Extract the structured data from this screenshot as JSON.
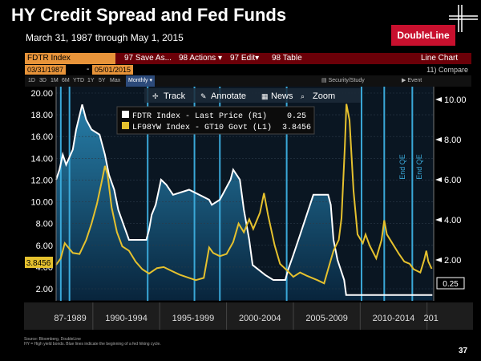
{
  "slide": {
    "title": "HY Credit Spread and Fed Funds",
    "subtitle": "March 31, 1987 through May 1, 2015",
    "logo": "DoubleLine",
    "page_number": "37",
    "footnote_source": "Source: Bloomberg, DoubleLine",
    "footnote_note": "HY = High yield bonds. Blue lines indicate the beginning of a fed hiking cycle."
  },
  "terminal": {
    "ticker": "FDTR Index",
    "save_as": "97 Save As...",
    "actions": "98 Actions",
    "edit": "97 Edit",
    "table": "98 Table",
    "view_type": "Line Chart",
    "compare": "Compare",
    "start_date": "03/31/1987",
    "end_date": "05/01/2015",
    "periods": [
      "1D",
      "3D",
      "1M",
      "6M",
      "YTD",
      "1Y",
      "5Y",
      "Max"
    ],
    "active_period": "Monthly",
    "security_study": "Security/Study",
    "event": "Event",
    "tools": [
      "Track",
      "Annotate",
      "News",
      "Zoom"
    ]
  },
  "colors": {
    "fed_funds": "#ffffff",
    "hy_spread": "#e5c12e",
    "hike_lines": "#3aa8d8",
    "accent": "#c8102e",
    "toolbar": "#6b0008",
    "ticker_bg": "#e8943a"
  },
  "chart_data": {
    "type": "line",
    "x_categories": [
      "87-1989",
      "1990-1994",
      "1995-1999",
      "2000-2004",
      "2005-2009",
      "2010-2014",
      "201"
    ],
    "left_axis": {
      "ticks": [
        20.0,
        18.0,
        16.0,
        14.0,
        12.0,
        10.0,
        8.0,
        6.0,
        4.0,
        2.0
      ],
      "range": [
        2,
        20
      ]
    },
    "right_axis": {
      "ticks": [
        10.0,
        8.0,
        6.0,
        4.0,
        2.0
      ],
      "range": [
        0,
        10
      ]
    },
    "legend": [
      {
        "name": "FDTR Index - Last Price (R1)",
        "value": "0.25"
      },
      {
        "name": "LF98YW Index - GT10 Govt (L1)",
        "value": "3.8456"
      }
    ],
    "last_values": {
      "hy": "3.8456",
      "ff": "0.25"
    },
    "annotations": [
      "End QE",
      "End QE"
    ],
    "hike_years": [
      1987.6,
      1988.25,
      1994.1,
      1997.6,
      1999.5,
      2004.5,
      2010.1,
      2011.8,
      2013.9
    ],
    "annotation_years": [
      2013.7,
      2014.95
    ],
    "series": [
      {
        "name": "FDTR Index",
        "axis": "right",
        "points": [
          [
            1987.25,
            6.0
          ],
          [
            1987.5,
            6.5
          ],
          [
            1987.75,
            7.25
          ],
          [
            1988.0,
            6.75
          ],
          [
            1988.5,
            7.5
          ],
          [
            1988.75,
            8.5
          ],
          [
            1989.2,
            9.75
          ],
          [
            1989.5,
            9.0
          ],
          [
            1989.9,
            8.5
          ],
          [
            1990.5,
            8.25
          ],
          [
            1990.9,
            7.25
          ],
          [
            1991.2,
            6.25
          ],
          [
            1991.6,
            5.5
          ],
          [
            1991.9,
            4.5
          ],
          [
            1992.3,
            3.75
          ],
          [
            1992.7,
            3.0
          ],
          [
            1993.5,
            3.0
          ],
          [
            1994.0,
            3.0
          ],
          [
            1994.2,
            3.5
          ],
          [
            1994.4,
            4.25
          ],
          [
            1994.7,
            4.75
          ],
          [
            1995.1,
            6.0
          ],
          [
            1995.5,
            5.75
          ],
          [
            1996.0,
            5.25
          ],
          [
            1997.2,
            5.5
          ],
          [
            1998.7,
            5.0
          ],
          [
            1998.9,
            4.75
          ],
          [
            1999.5,
            5.0
          ],
          [
            1999.9,
            5.5
          ],
          [
            2000.3,
            6.0
          ],
          [
            2000.5,
            6.5
          ],
          [
            2001.0,
            6.0
          ],
          [
            2001.3,
            4.5
          ],
          [
            2001.7,
            3.0
          ],
          [
            2001.95,
            1.75
          ],
          [
            2002.9,
            1.25
          ],
          [
            2003.5,
            1.0
          ],
          [
            2004.4,
            1.0
          ],
          [
            2004.6,
            1.5
          ],
          [
            2005.0,
            2.25
          ],
          [
            2005.5,
            3.25
          ],
          [
            2006.0,
            4.25
          ],
          [
            2006.5,
            5.25
          ],
          [
            2007.6,
            5.25
          ],
          [
            2007.8,
            4.75
          ],
          [
            2008.0,
            3.0
          ],
          [
            2008.3,
            2.0
          ],
          [
            2008.8,
            1.0
          ],
          [
            2008.95,
            0.25
          ],
          [
            2015.4,
            0.25
          ]
        ]
      },
      {
        "name": "LF98YW Index",
        "axis": "left",
        "points": [
          [
            1987.25,
            4.2
          ],
          [
            1987.6,
            4.8
          ],
          [
            1987.9,
            6.2
          ],
          [
            1988.5,
            5.3
          ],
          [
            1989.0,
            5.2
          ],
          [
            1989.5,
            6.5
          ],
          [
            1989.9,
            8.0
          ],
          [
            1990.3,
            9.8
          ],
          [
            1990.6,
            11.5
          ],
          [
            1990.9,
            13.3
          ],
          [
            1991.1,
            12.5
          ],
          [
            1991.4,
            9.5
          ],
          [
            1991.8,
            7.2
          ],
          [
            1992.2,
            5.9
          ],
          [
            1992.7,
            5.5
          ],
          [
            1993.2,
            4.5
          ],
          [
            1993.7,
            3.8
          ],
          [
            1994.2,
            3.4
          ],
          [
            1994.8,
            3.9
          ],
          [
            1995.3,
            4.0
          ],
          [
            1995.8,
            3.7
          ],
          [
            1996.5,
            3.3
          ],
          [
            1997.2,
            3.0
          ],
          [
            1997.7,
            2.8
          ],
          [
            1998.3,
            3.0
          ],
          [
            1998.7,
            5.8
          ],
          [
            1999.0,
            5.3
          ],
          [
            1999.5,
            5.0
          ],
          [
            2000.0,
            5.2
          ],
          [
            2000.5,
            6.3
          ],
          [
            2000.9,
            8.0
          ],
          [
            2001.3,
            7.2
          ],
          [
            2001.7,
            8.4
          ],
          [
            2002.0,
            7.5
          ],
          [
            2002.5,
            9.0
          ],
          [
            2002.8,
            10.8
          ],
          [
            2003.1,
            8.8
          ],
          [
            2003.6,
            6.0
          ],
          [
            2004.0,
            4.3
          ],
          [
            2004.6,
            3.6
          ],
          [
            2005.0,
            3.1
          ],
          [
            2005.5,
            3.5
          ],
          [
            2006.0,
            3.2
          ],
          [
            2006.8,
            2.8
          ],
          [
            2007.3,
            2.5
          ],
          [
            2007.6,
            3.8
          ],
          [
            2008.0,
            5.5
          ],
          [
            2008.4,
            6.5
          ],
          [
            2008.6,
            8.5
          ],
          [
            2008.85,
            15.0
          ],
          [
            2008.97,
            19.0
          ],
          [
            2009.2,
            17.5
          ],
          [
            2009.5,
            11.0
          ],
          [
            2009.8,
            7.0
          ],
          [
            2010.2,
            6.2
          ],
          [
            2010.4,
            7.0
          ],
          [
            2010.7,
            6.0
          ],
          [
            2011.2,
            4.8
          ],
          [
            2011.6,
            6.5
          ],
          [
            2011.8,
            8.3
          ],
          [
            2012.0,
            7.0
          ],
          [
            2012.5,
            6.0
          ],
          [
            2012.9,
            5.2
          ],
          [
            2013.3,
            4.5
          ],
          [
            2013.7,
            4.3
          ],
          [
            2014.0,
            3.8
          ],
          [
            2014.5,
            3.5
          ],
          [
            2014.8,
            4.7
          ],
          [
            2014.95,
            5.5
          ],
          [
            2015.1,
            4.5
          ],
          [
            2015.35,
            3.8456
          ]
        ]
      }
    ]
  }
}
